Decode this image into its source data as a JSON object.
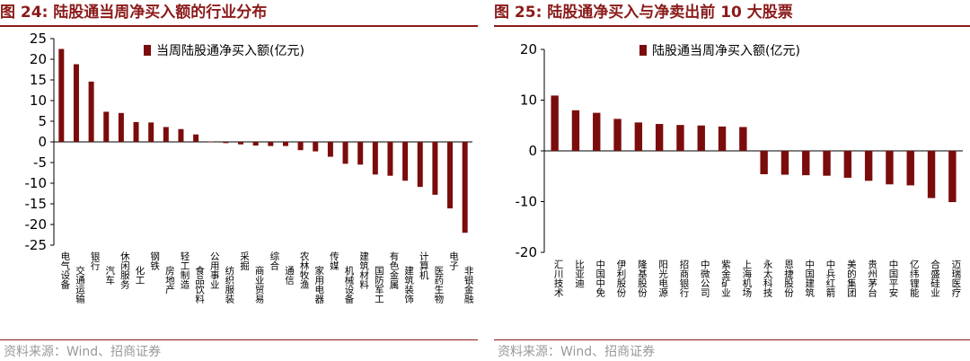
{
  "charts": {
    "left": {
      "figure_title": "图 24:  陆股通当周净买入额的行业分布",
      "source": "资料来源：Wind、招商证券"
    },
    "right": {
      "figure_title": "图 25:  陆股通净买入与净卖出前 10 大股票",
      "source": "资料来源：Wind、招商证券"
    }
  },
  "colors": {
    "bar": "#7b0c0c",
    "title": "#8b1a1a",
    "axis": "#000000",
    "source": "#999999"
  },
  "chart_data": [
    {
      "type": "bar",
      "title": "图 24:  陆股通当周净买入额的行业分布",
      "legend": "当周陆股通净买入额(亿元)",
      "legend_position": "top-right",
      "ylim": [
        -25,
        25
      ],
      "yticks": [
        -25,
        -20,
        -15,
        -10,
        -5,
        0,
        5,
        10,
        15,
        20,
        25
      ],
      "categories": [
        "电气设备",
        "交通运输",
        "银行",
        "汽车",
        "休闲服务",
        "化工",
        "钢铁",
        "房地产",
        "轻工制造",
        "食品饮料",
        "公用事业",
        "纺织服装",
        "采掘",
        "商业贸易",
        "综合",
        "通信",
        "农林牧渔",
        "家用电器",
        "传媒",
        "机械设备",
        "建筑材料",
        "国防军工",
        "有色金属",
        "建筑装饰",
        "计算机",
        "医药生物",
        "电子",
        "非银金融"
      ],
      "values": [
        22.5,
        18.8,
        14.6,
        7.3,
        7.0,
        4.8,
        4.7,
        3.6,
        3.1,
        1.8,
        0.1,
        -0.3,
        -0.6,
        -0.9,
        -1.0,
        -1.0,
        -2.0,
        -2.3,
        -3.6,
        -5.3,
        -5.5,
        -7.9,
        -8.2,
        -9.4,
        -10.9,
        -12.8,
        -16.1,
        -22.0
      ]
    },
    {
      "type": "bar",
      "title": "图 25:  陆股通净买入与净卖出前 10 大股票",
      "legend": "陆股通当周净买入额(亿元)",
      "legend_position": "top-right",
      "ylim": [
        -20,
        20
      ],
      "yticks": [
        -20,
        -10,
        0,
        10,
        20
      ],
      "categories": [
        "汇川技术",
        "比亚迪",
        "中国中免",
        "伊利股份",
        "隆基股份",
        "阳光电源",
        "招商银行",
        "中微公司",
        "紫金矿业",
        "上海机场",
        "永太科技",
        "恩捷股份",
        "中国建筑",
        "中兵红箭",
        "美的集团",
        "贵州茅台",
        "中国平安",
        "亿纬锂能",
        "合盛硅业",
        "迈瑞医疗"
      ],
      "values": [
        10.9,
        8.0,
        7.5,
        6.3,
        5.6,
        5.3,
        5.1,
        5.0,
        4.8,
        4.7,
        -4.6,
        -4.7,
        -4.8,
        -4.9,
        -5.3,
        -5.9,
        -6.6,
        -6.8,
        -9.3,
        -10.1
      ]
    }
  ]
}
